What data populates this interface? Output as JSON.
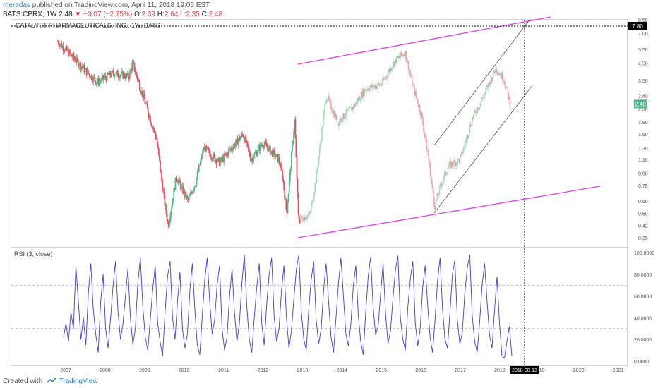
{
  "header": {
    "author": "meredas",
    "published_text": "published on TradingView.com, April 11, 2018 19:05 EST",
    "symbol": "BATS:CPRX, 1W",
    "last": "2.48",
    "change": "▼ −0.07 (−2.75%)",
    "ohlc": {
      "o": "2.39",
      "h": "2.64",
      "l": "2.35",
      "c": "2.48"
    }
  },
  "footer": {
    "created_with": "Created with",
    "brand": "TradingView"
  },
  "chart_data": [
    {
      "type": "candlestick",
      "title": "CATALYST PHARMACEUTICALS, INC., 1W, BATS",
      "y_scale": "log",
      "y_ticks": [
        "0.35",
        "0.42",
        "0.50",
        "0.60",
        "0.75",
        "0.90",
        "1.10",
        "1.30",
        "1.60",
        "1.90",
        "2.30",
        "2.80",
        "3.50",
        "4.50",
        "5.50",
        "7.00",
        "8.50"
      ],
      "x_ticks": [
        "2007",
        "2008",
        "2009",
        "2010",
        "2011",
        "2012",
        "2013",
        "2014",
        "2015",
        "2016",
        "2017",
        "2018",
        "2019",
        "2020",
        "2021"
      ],
      "last_price_label": "2.48",
      "crosshair": {
        "price_label": "7.80",
        "date_label": "2018-08-13"
      },
      "colors": {
        "up": "#53b987",
        "down": "#eb4d5c",
        "channel": "#e040e0",
        "trendline": "#555555"
      },
      "approx_price_path": [
        {
          "year": 2006.8,
          "price": 6.2
        },
        {
          "year": 2007.4,
          "price": 4.3
        },
        {
          "year": 2007.8,
          "price": 3.4
        },
        {
          "year": 2008.2,
          "price": 3.9
        },
        {
          "year": 2008.6,
          "price": 3.7
        },
        {
          "year": 2008.7,
          "price": 4.5
        },
        {
          "year": 2009.0,
          "price": 2.6
        },
        {
          "year": 2009.3,
          "price": 1.5
        },
        {
          "year": 2009.5,
          "price": 0.6
        },
        {
          "year": 2009.6,
          "price": 0.42
        },
        {
          "year": 2009.8,
          "price": 0.85
        },
        {
          "year": 2010.1,
          "price": 0.6
        },
        {
          "year": 2010.3,
          "price": 0.8
        },
        {
          "year": 2010.5,
          "price": 1.3
        },
        {
          "year": 2010.9,
          "price": 1.05
        },
        {
          "year": 2011.2,
          "price": 1.3
        },
        {
          "year": 2011.5,
          "price": 1.6
        },
        {
          "year": 2011.7,
          "price": 1.1
        },
        {
          "year": 2012.0,
          "price": 1.4
        },
        {
          "year": 2012.4,
          "price": 1.1
        },
        {
          "year": 2012.5,
          "price": 0.85
        },
        {
          "year": 2012.6,
          "price": 0.5
        },
        {
          "year": 2012.8,
          "price": 1.95
        },
        {
          "year": 2012.9,
          "price": 0.45
        },
        {
          "year": 2013.2,
          "price": 0.5
        },
        {
          "year": 2013.35,
          "price": 0.85
        },
        {
          "year": 2013.6,
          "price": 2.8
        },
        {
          "year": 2013.9,
          "price": 1.9
        },
        {
          "year": 2014.3,
          "price": 2.4
        },
        {
          "year": 2014.6,
          "price": 3.1
        },
        {
          "year": 2015.0,
          "price": 3.3
        },
        {
          "year": 2015.3,
          "price": 4.5
        },
        {
          "year": 2015.6,
          "price": 5.3
        },
        {
          "year": 2015.8,
          "price": 3.2
        },
        {
          "year": 2016.0,
          "price": 2.2
        },
        {
          "year": 2016.2,
          "price": 1.1
        },
        {
          "year": 2016.35,
          "price": 0.55
        },
        {
          "year": 2016.5,
          "price": 0.75
        },
        {
          "year": 2016.7,
          "price": 1.0
        },
        {
          "year": 2017.0,
          "price": 1.1
        },
        {
          "year": 2017.3,
          "price": 2.0
        },
        {
          "year": 2017.6,
          "price": 2.8
        },
        {
          "year": 2017.9,
          "price": 4.2
        },
        {
          "year": 2018.1,
          "price": 3.6
        },
        {
          "year": 2018.27,
          "price": 2.48
        }
      ]
    },
    {
      "type": "line",
      "title": "RSI (3, close)",
      "y_ticks": [
        "0.0000",
        "20.0000",
        "40.0000",
        "60.0000",
        "80.0000",
        "100.0000"
      ],
      "ylim": [
        0,
        100
      ],
      "guide_levels": [
        30,
        70
      ],
      "series": [
        {
          "color": "#3f3fd0",
          "values": [
            22,
            35,
            18,
            45,
            30,
            88,
            55,
            20,
            40,
            15,
            62,
            90,
            48,
            25,
            8,
            55,
            80,
            30,
            12,
            40,
            70,
            92,
            45,
            20,
            35,
            60,
            85,
            40,
            15,
            30,
            72,
            95,
            50,
            22,
            10,
            38,
            66,
            88,
            35,
            18,
            5,
            45,
            78,
            92,
            40,
            20,
            55,
            82,
            30,
            12,
            25,
            65,
            90,
            48,
            15,
            6,
            42,
            75,
            95,
            55,
            25,
            38,
            70,
            88,
            30,
            10,
            22,
            60,
            85,
            45,
            18,
            35,
            72,
            98,
            50,
            20,
            8,
            40,
            68,
            90,
            35,
            15,
            52,
            80,
            95,
            42,
            18,
            30,
            65,
            88,
            40,
            12,
            28,
            58,
            85,
            98,
            45,
            20,
            10,
            48,
            75,
            92,
            38,
            16,
            30,
            66,
            90,
            55,
            22,
            8,
            40,
            72,
            95,
            60,
            25,
            14,
            35,
            70,
            88,
            42,
            18,
            6,
            45,
            78,
            96,
            50,
            24,
            32,
            62,
            90,
            44,
            16,
            28,
            58,
            84,
            97,
            40,
            20,
            10,
            50,
            76,
            92,
            35,
            14,
            30,
            68,
            88,
            52,
            22,
            8,
            38,
            74,
            95,
            48,
            20,
            12,
            44,
            80,
            93,
            38,
            16,
            26,
            62,
            86,
            98,
            42,
            18,
            8,
            36,
            70,
            90,
            55,
            24,
            12,
            46,
            78,
            35,
            5,
            3,
            18,
            32,
            5
          ]
        }
      ]
    }
  ]
}
